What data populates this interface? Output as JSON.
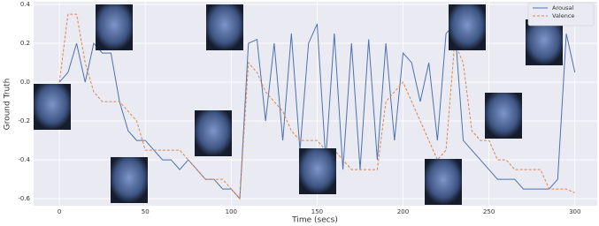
{
  "chart_data": {
    "type": "line",
    "xlabel": "Time (secs)",
    "ylabel": "Ground Truth",
    "x": [
      0,
      5,
      10,
      15,
      20,
      25,
      30,
      35,
      40,
      45,
      50,
      55,
      60,
      65,
      70,
      75,
      80,
      85,
      90,
      95,
      100,
      105,
      110,
      115,
      120,
      125,
      130,
      135,
      140,
      145,
      150,
      155,
      160,
      165,
      170,
      175,
      180,
      185,
      190,
      195,
      200,
      205,
      210,
      215,
      220,
      225,
      230,
      235,
      240,
      245,
      250,
      255,
      260,
      265,
      270,
      275,
      280,
      285,
      290,
      295,
      300
    ],
    "series": [
      {
        "name": "Arousal",
        "color": "#4c72b0",
        "linestyle": "solid",
        "values": [
          0.0,
          0.05,
          0.2,
          0.0,
          0.2,
          0.15,
          0.15,
          -0.1,
          -0.25,
          -0.3,
          -0.3,
          -0.35,
          -0.4,
          -0.4,
          -0.45,
          -0.4,
          -0.45,
          -0.5,
          -0.5,
          -0.55,
          -0.55,
          -0.6,
          0.2,
          0.22,
          -0.2,
          0.2,
          -0.3,
          0.25,
          -0.35,
          0.2,
          0.3,
          -0.4,
          0.25,
          -0.45,
          0.2,
          -0.45,
          0.22,
          -0.4,
          0.2,
          -0.3,
          0.15,
          0.1,
          -0.1,
          0.1,
          -0.3,
          0.25,
          0.3,
          -0.3,
          -0.35,
          -0.4,
          -0.45,
          -0.5,
          -0.5,
          -0.5,
          -0.55,
          -0.55,
          -0.55,
          -0.55,
          -0.5,
          0.25,
          0.05
        ]
      },
      {
        "name": "Valence",
        "color": "#dd8452",
        "linestyle": "dashed",
        "values": [
          0.0,
          0.35,
          0.35,
          0.1,
          -0.05,
          -0.1,
          -0.1,
          -0.1,
          -0.15,
          -0.2,
          -0.35,
          -0.35,
          -0.35,
          -0.35,
          -0.35,
          -0.4,
          -0.45,
          -0.5,
          -0.5,
          -0.5,
          -0.55,
          -0.6,
          0.1,
          0.05,
          -0.05,
          -0.1,
          -0.15,
          -0.25,
          -0.3,
          -0.3,
          -0.3,
          -0.35,
          -0.35,
          -0.4,
          -0.45,
          -0.45,
          -0.45,
          -0.45,
          -0.1,
          -0.05,
          0.0,
          -0.1,
          -0.2,
          -0.3,
          -0.4,
          -0.35,
          0.2,
          0.1,
          -0.25,
          -0.3,
          -0.3,
          -0.4,
          -0.4,
          -0.45,
          -0.45,
          -0.45,
          -0.45,
          -0.55,
          -0.55,
          -0.55,
          -0.57
        ]
      }
    ],
    "xlim": [
      -15,
      313
    ],
    "ylim": [
      -0.636,
      0.414
    ],
    "xticks": [
      0,
      50,
      100,
      150,
      200,
      250,
      300
    ],
    "yticks": [
      0.4,
      0.2,
      {
        "value": 0,
        "label": "0.0"
      },
      -0.2,
      -0.4,
      -0.6
    ],
    "grid": true,
    "legend": "upper right"
  }
}
